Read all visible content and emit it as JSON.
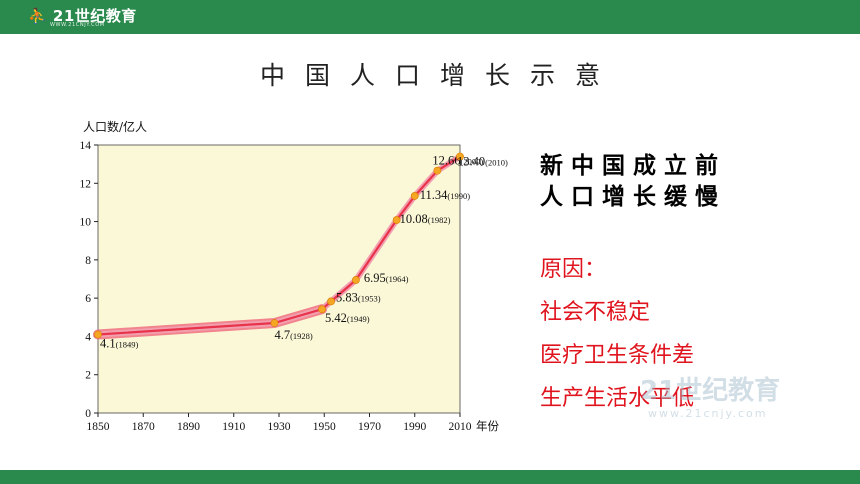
{
  "header": {
    "logo_text": "21世纪教育",
    "logo_sub": "WWW.21CNJY.COM"
  },
  "slide": {
    "title": "中国人口增长示意",
    "heading_lines": [
      "新中国成立前",
      "人口增长缓慢"
    ],
    "reasons_title": "原因：",
    "reasons": [
      "社会不稳定",
      "医疗卫生条件差",
      "生产生活水平低"
    ]
  },
  "watermark": {
    "text": "21世纪教育",
    "url": "www.21cnjy.com"
  },
  "colors": {
    "bar": "#2a8a4e",
    "plot_bg": "#fbf8d8",
    "line": "#e8334a",
    "point": "#f5a623",
    "reasons": "#e0141e"
  },
  "chart_data": {
    "type": "line",
    "title": "",
    "ylabel": "人口数/亿人",
    "xlabel": "年份",
    "xlim": [
      1850,
      2010
    ],
    "ylim": [
      0,
      14
    ],
    "xticks": [
      1850,
      1870,
      1890,
      1910,
      1930,
      1950,
      1970,
      1990,
      2010
    ],
    "yticks": [
      0,
      2,
      4,
      6,
      8,
      10,
      12,
      14
    ],
    "grid": false,
    "points": [
      {
        "x": 1849,
        "y": 4.1,
        "value_label": "4.1",
        "year_label": "(1849)"
      },
      {
        "x": 1928,
        "y": 4.7,
        "value_label": "4.7",
        "year_label": "(1928)"
      },
      {
        "x": 1949,
        "y": 5.42,
        "value_label": "5.42",
        "year_label": "(1949)"
      },
      {
        "x": 1953,
        "y": 5.83,
        "value_label": "5.83",
        "year_label": "(1953)"
      },
      {
        "x": 1964,
        "y": 6.95,
        "value_label": "6.95",
        "year_label": "(1964)"
      },
      {
        "x": 1982,
        "y": 10.08,
        "value_label": "10.08",
        "year_label": "(1982)"
      },
      {
        "x": 1990,
        "y": 11.34,
        "value_label": "11.34",
        "year_label": "(1990)"
      },
      {
        "x": 2000,
        "y": 12.66,
        "value_label": "12.66",
        "year_label": "(2000)"
      },
      {
        "x": 2010,
        "y": 13.4,
        "value_label": "13.40",
        "year_label": "(2010)"
      }
    ]
  }
}
